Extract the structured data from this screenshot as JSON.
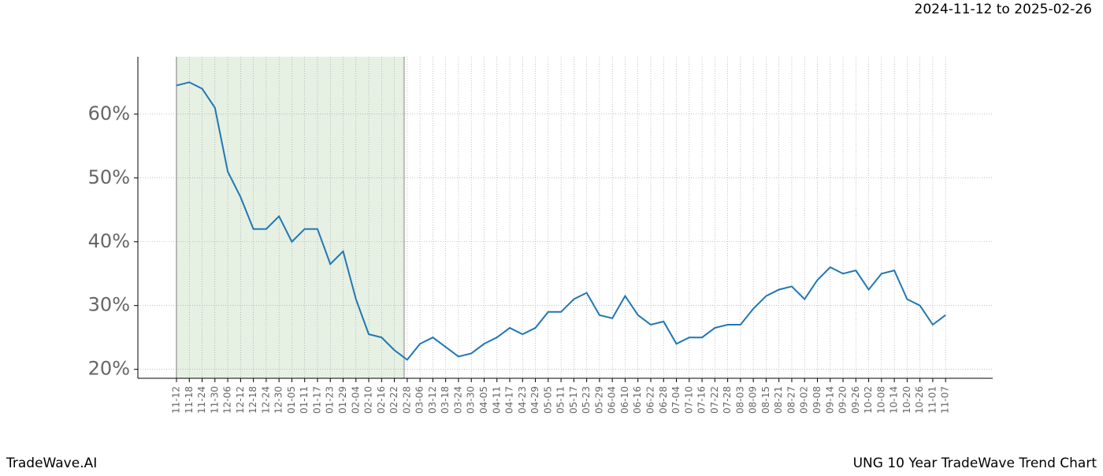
{
  "header": {
    "date_range": "2024-11-12 to 2025-02-26"
  },
  "footer": {
    "brand": "TradeWave.AI",
    "chart_name": "UNG 10 Year TradeWave Trend Chart"
  },
  "chart_data": {
    "type": "line",
    "categories": [
      "11-12",
      "11-18",
      "11-24",
      "11-30",
      "12-06",
      "12-12",
      "12-18",
      "12-24",
      "12-30",
      "01-05",
      "01-11",
      "01-17",
      "01-23",
      "01-29",
      "02-04",
      "02-10",
      "02-16",
      "02-22",
      "02-28",
      "03-06",
      "03-12",
      "03-18",
      "03-24",
      "03-30",
      "04-05",
      "04-11",
      "04-17",
      "04-23",
      "04-29",
      "05-05",
      "05-11",
      "05-17",
      "05-23",
      "05-29",
      "06-04",
      "06-10",
      "06-16",
      "06-22",
      "06-28",
      "07-04",
      "07-10",
      "07-16",
      "07-22",
      "07-28",
      "08-03",
      "08-09",
      "08-15",
      "08-21",
      "08-27",
      "09-02",
      "09-08",
      "09-14",
      "09-20",
      "09-26",
      "10-02",
      "10-08",
      "10-14",
      "10-20",
      "10-26",
      "11-01",
      "11-07"
    ],
    "values": [
      64.5,
      65,
      64,
      61,
      51,
      47,
      42,
      42,
      44,
      40,
      42,
      42,
      36.5,
      38.5,
      31,
      25.5,
      25,
      23,
      21.5,
      24,
      25,
      23.5,
      22,
      22.5,
      24,
      25,
      26.5,
      25.5,
      26.5,
      29,
      29,
      31,
      32,
      28.5,
      28,
      31.5,
      28.5,
      27,
      27.5,
      24,
      25,
      25,
      26.5,
      27,
      27,
      29.5,
      31.5,
      32.5,
      33,
      31,
      34,
      36,
      35,
      35.5,
      32.5,
      35,
      35.5,
      31,
      30,
      27,
      28.5
    ],
    "color": "#1f77b4",
    "shaded_range": [
      "11-12",
      "02-28"
    ],
    "shade_color": "#e6f0e3",
    "ylim": [
      18.6,
      69
    ],
    "yticks": [
      {
        "value": 20,
        "label": "20%"
      },
      {
        "value": 30,
        "label": "30%"
      },
      {
        "value": 40,
        "label": "40%"
      },
      {
        "value": 50,
        "label": "50%"
      },
      {
        "value": 60,
        "label": "60%"
      }
    ],
    "grid": true
  }
}
